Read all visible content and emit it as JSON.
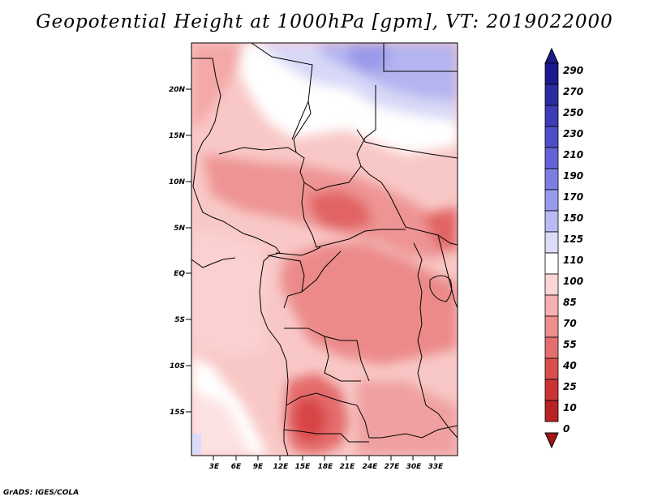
{
  "title": "Geopotential Height at 1000hPa [gpm], VT: 2019022000",
  "credit": "GrADS: IGES/COLA",
  "map": {
    "lon_range": [
      -1,
      35
    ],
    "lat_range": [
      -20,
      25
    ],
    "lat_ticks": [
      "20N",
      "15N",
      "10N",
      "5N",
      "EQ",
      "5S",
      "10S",
      "15S"
    ],
    "lon_ticks": [
      "3E",
      "6E",
      "9E",
      "12E",
      "15E",
      "18E",
      "21E",
      "24E",
      "27E",
      "30E",
      "33E"
    ]
  },
  "colorbar": {
    "levels": [
      "290",
      "270",
      "250",
      "230",
      "210",
      "190",
      "170",
      "150",
      "125",
      "110",
      "100",
      "85",
      "70",
      "55",
      "40",
      "25",
      "10",
      "0"
    ],
    "colors": [
      "#1a1a8c",
      "#2b2ba0",
      "#3c3cb4",
      "#4e4ec6",
      "#6464d6",
      "#7d7de2",
      "#9a9aec",
      "#babaf4",
      "#dcdcfa",
      "#ffffff",
      "#fcd6d6",
      "#f6b0b0",
      "#ee8e8e",
      "#e46e6e",
      "#da4e4e",
      "#cc3434",
      "#b82222",
      "#a41414"
    ]
  }
}
